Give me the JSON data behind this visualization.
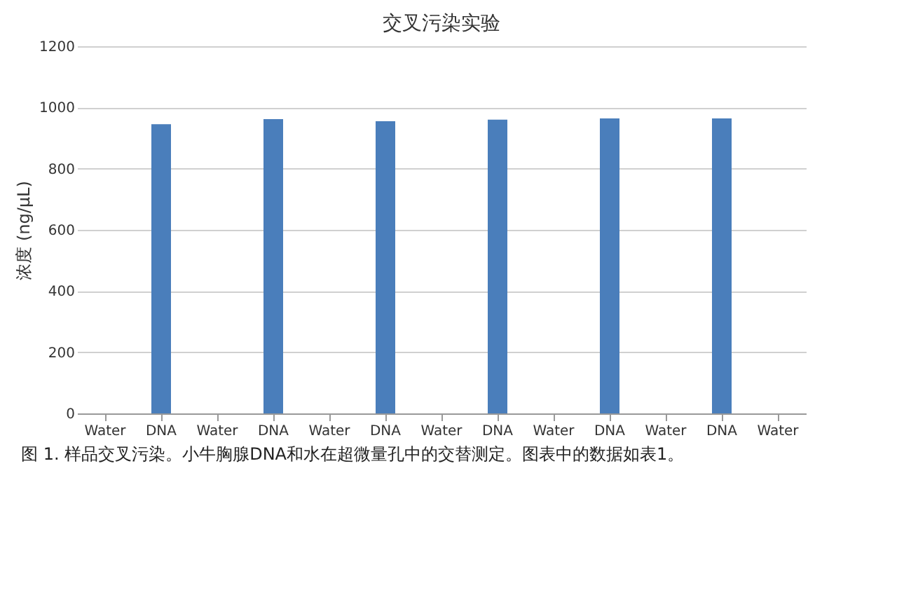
{
  "chart_data": {
    "type": "bar",
    "title": "交叉污染实验",
    "ylabel": "浓度 (ng/μL)",
    "categories": [
      "Water",
      "DNA",
      "Water",
      "DNA",
      "Water",
      "DNA",
      "Water",
      "DNA",
      "Water",
      "DNA",
      "Water",
      "DNA",
      "Water"
    ],
    "values": [
      0,
      945,
      0,
      962,
      0,
      955,
      0,
      960,
      0,
      964,
      0,
      964,
      0
    ],
    "color": "#4a7ebb",
    "ylim": [
      0,
      1200
    ],
    "yticks": [
      0,
      200,
      400,
      600,
      800,
      1000,
      1200
    ],
    "grid": "y",
    "annotations": [
      "图 1. 样品交叉污染。小牛胸腺DNA和水在超微量孔中的交替测定。图表中的数据如表1。"
    ]
  }
}
